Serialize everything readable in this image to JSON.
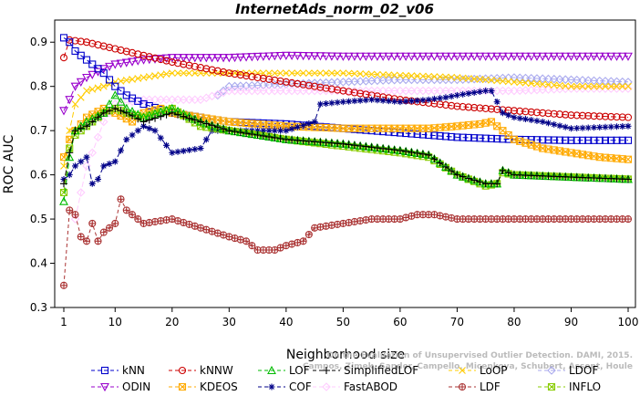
{
  "chart_data": {
    "type": "line",
    "title": "InternetAds_norm_02_v06",
    "xlabel": "Neighborhood size",
    "ylabel": "ROC AUC",
    "xlim": [
      0,
      100
    ],
    "ylim": [
      0.3,
      0.95
    ],
    "x_ticks": [
      1,
      10,
      20,
      30,
      40,
      50,
      60,
      70,
      80,
      90,
      100
    ],
    "y_ticks": [
      0.3,
      0.4,
      0.5,
      0.6,
      0.7,
      0.8,
      0.9
    ],
    "legend_position": "bottom",
    "watermark": "Campos, Zimek, Sander, Campello, Micenkova, Schubert, Assent, Houle",
    "watermark2": "On the Evaluation of Unsupervised Outlier Detection. DAMI, 2015.",
    "series": [
      {
        "name": "kNN",
        "color": "#0000cc",
        "marker": "square",
        "dash": "6,3",
        "points": [
          [
            1,
            0.91
          ],
          [
            2,
            0.9
          ],
          [
            3,
            0.88
          ],
          [
            5,
            0.86
          ],
          [
            8,
            0.83
          ],
          [
            10,
            0.8
          ],
          [
            12,
            0.78
          ],
          [
            15,
            0.76
          ],
          [
            20,
            0.74
          ],
          [
            30,
            0.72
          ],
          [
            40,
            0.715
          ],
          [
            50,
            0.705
          ],
          [
            60,
            0.695
          ],
          [
            70,
            0.685
          ],
          [
            80,
            0.68
          ],
          [
            90,
            0.678
          ],
          [
            100,
            0.678
          ]
        ]
      },
      {
        "name": "kNNW",
        "color": "#cc0000",
        "marker": "circle",
        "dash": "6,3",
        "points": [
          [
            1,
            0.865
          ],
          [
            2,
            0.905
          ],
          [
            5,
            0.9
          ],
          [
            10,
            0.885
          ],
          [
            15,
            0.87
          ],
          [
            20,
            0.855
          ],
          [
            30,
            0.83
          ],
          [
            40,
            0.81
          ],
          [
            50,
            0.79
          ],
          [
            60,
            0.77
          ],
          [
            70,
            0.755
          ],
          [
            80,
            0.745
          ],
          [
            90,
            0.735
          ],
          [
            100,
            0.73
          ]
        ]
      },
      {
        "name": "LOF",
        "color": "#00bb00",
        "marker": "triangle",
        "dash": "6,3",
        "points": [
          [
            1,
            0.54
          ],
          [
            2,
            0.64
          ],
          [
            3,
            0.7
          ],
          [
            5,
            0.72
          ],
          [
            8,
            0.74
          ],
          [
            10,
            0.78
          ],
          [
            12,
            0.75
          ],
          [
            15,
            0.73
          ],
          [
            20,
            0.75
          ],
          [
            25,
            0.72
          ],
          [
            30,
            0.7
          ],
          [
            40,
            0.68
          ],
          [
            50,
            0.67
          ],
          [
            60,
            0.655
          ],
          [
            65,
            0.645
          ],
          [
            70,
            0.6
          ],
          [
            75,
            0.58
          ],
          [
            77,
            0.58
          ],
          [
            78,
            0.61
          ],
          [
            80,
            0.6
          ],
          [
            90,
            0.595
          ],
          [
            100,
            0.59
          ]
        ]
      },
      {
        "name": "SimplifiedLOF",
        "color": "#000000",
        "marker": "plus",
        "dash": "6,3",
        "points": [
          [
            1,
            0.58
          ],
          [
            2,
            0.65
          ],
          [
            3,
            0.7
          ],
          [
            5,
            0.71
          ],
          [
            8,
            0.74
          ],
          [
            10,
            0.75
          ],
          [
            12,
            0.74
          ],
          [
            15,
            0.72
          ],
          [
            20,
            0.74
          ],
          [
            25,
            0.72
          ],
          [
            30,
            0.7
          ],
          [
            40,
            0.68
          ],
          [
            50,
            0.67
          ],
          [
            60,
            0.655
          ],
          [
            65,
            0.645
          ],
          [
            70,
            0.6
          ],
          [
            75,
            0.58
          ],
          [
            77,
            0.58
          ],
          [
            78,
            0.61
          ],
          [
            80,
            0.6
          ],
          [
            90,
            0.595
          ],
          [
            100,
            0.59
          ]
        ]
      },
      {
        "name": "LoOP",
        "color": "#ffcc00",
        "marker": "x",
        "dash": "6,3",
        "points": [
          [
            1,
            0.62
          ],
          [
            2,
            0.7
          ],
          [
            3,
            0.76
          ],
          [
            5,
            0.79
          ],
          [
            8,
            0.8
          ],
          [
            10,
            0.81
          ],
          [
            15,
            0.82
          ],
          [
            20,
            0.83
          ],
          [
            30,
            0.83
          ],
          [
            40,
            0.83
          ],
          [
            50,
            0.83
          ],
          [
            60,
            0.825
          ],
          [
            70,
            0.82
          ],
          [
            80,
            0.81
          ],
          [
            90,
            0.8
          ],
          [
            100,
            0.8
          ]
        ]
      },
      {
        "name": "LDOF",
        "color": "#aaaaee",
        "marker": "diamond",
        "dash": "6,3",
        "points": [
          [
            28,
            0.78
          ],
          [
            30,
            0.8
          ],
          [
            40,
            0.805
          ],
          [
            50,
            0.81
          ],
          [
            60,
            0.815
          ],
          [
            70,
            0.815
          ],
          [
            80,
            0.82
          ],
          [
            90,
            0.815
          ],
          [
            100,
            0.81
          ]
        ]
      },
      {
        "name": "ODIN",
        "color": "#9900cc",
        "marker": "triangle-down",
        "dash": "6,3",
        "points": [
          [
            1,
            0.745
          ],
          [
            2,
            0.77
          ],
          [
            3,
            0.8
          ],
          [
            5,
            0.82
          ],
          [
            8,
            0.84
          ],
          [
            10,
            0.85
          ],
          [
            15,
            0.86
          ],
          [
            20,
            0.865
          ],
          [
            30,
            0.865
          ],
          [
            40,
            0.87
          ],
          [
            50,
            0.868
          ],
          [
            60,
            0.868
          ],
          [
            70,
            0.868
          ],
          [
            80,
            0.868
          ],
          [
            90,
            0.868
          ],
          [
            100,
            0.868
          ]
        ]
      },
      {
        "name": "KDEOS",
        "color": "#ffaa00",
        "marker": "square-x",
        "dash": "6,3",
        "points": [
          [
            1,
            0.64
          ],
          [
            2,
            0.68
          ],
          [
            3,
            0.7
          ],
          [
            5,
            0.73
          ],
          [
            8,
            0.75
          ],
          [
            10,
            0.74
          ],
          [
            13,
            0.72
          ],
          [
            15,
            0.74
          ],
          [
            18,
            0.75
          ],
          [
            20,
            0.74
          ],
          [
            30,
            0.72
          ],
          [
            40,
            0.71
          ],
          [
            50,
            0.705
          ],
          [
            60,
            0.705
          ],
          [
            65,
            0.705
          ],
          [
            70,
            0.71
          ],
          [
            74,
            0.715
          ],
          [
            76,
            0.72
          ],
          [
            78,
            0.7
          ],
          [
            80,
            0.68
          ],
          [
            85,
            0.66
          ],
          [
            90,
            0.65
          ],
          [
            95,
            0.64
          ],
          [
            100,
            0.635
          ]
        ]
      },
      {
        "name": "COF",
        "color": "#000088",
        "marker": "star",
        "dash": "6,3",
        "points": [
          [
            1,
            0.59
          ],
          [
            2,
            0.6
          ],
          [
            3,
            0.62
          ],
          [
            5,
            0.64
          ],
          [
            6,
            0.58
          ],
          [
            7,
            0.59
          ],
          [
            8,
            0.62
          ],
          [
            10,
            0.63
          ],
          [
            12,
            0.68
          ],
          [
            15,
            0.71
          ],
          [
            17,
            0.7
          ],
          [
            20,
            0.65
          ],
          [
            25,
            0.66
          ],
          [
            27,
            0.7
          ],
          [
            30,
            0.7
          ],
          [
            40,
            0.7
          ],
          [
            45,
            0.72
          ],
          [
            46,
            0.76
          ],
          [
            50,
            0.765
          ],
          [
            55,
            0.77
          ],
          [
            60,
            0.765
          ],
          [
            65,
            0.77
          ],
          [
            68,
            0.775
          ],
          [
            70,
            0.78
          ],
          [
            75,
            0.79
          ],
          [
            76,
            0.79
          ],
          [
            78,
            0.74
          ],
          [
            80,
            0.73
          ],
          [
            85,
            0.72
          ],
          [
            90,
            0.705
          ],
          [
            100,
            0.71
          ]
        ]
      },
      {
        "name": "FastABOD",
        "color": "#ffccff",
        "marker": "diamond",
        "dash": "6,3",
        "points": [
          [
            3,
            0.5
          ],
          [
            4,
            0.56
          ],
          [
            5,
            0.62
          ],
          [
            6,
            0.65
          ],
          [
            8,
            0.72
          ],
          [
            10,
            0.76
          ],
          [
            15,
            0.77
          ],
          [
            20,
            0.77
          ],
          [
            25,
            0.77
          ],
          [
            30,
            0.79
          ],
          [
            40,
            0.79
          ],
          [
            50,
            0.79
          ],
          [
            60,
            0.79
          ],
          [
            70,
            0.79
          ],
          [
            80,
            0.79
          ],
          [
            90,
            0.795
          ],
          [
            100,
            0.795
          ]
        ]
      },
      {
        "name": "LDF",
        "color": "#aa3333",
        "marker": "circle-plus",
        "dash": "4,3",
        "points": [
          [
            1,
            0.35
          ],
          [
            2,
            0.52
          ],
          [
            3,
            0.51
          ],
          [
            4,
            0.46
          ],
          [
            5,
            0.45
          ],
          [
            6,
            0.49
          ],
          [
            7,
            0.45
          ],
          [
            8,
            0.47
          ],
          [
            9,
            0.48
          ],
          [
            10,
            0.49
          ],
          [
            11,
            0.545
          ],
          [
            12,
            0.52
          ],
          [
            13,
            0.51
          ],
          [
            15,
            0.49
          ],
          [
            20,
            0.5
          ],
          [
            25,
            0.48
          ],
          [
            30,
            0.46
          ],
          [
            33,
            0.45
          ],
          [
            35,
            0.43
          ],
          [
            38,
            0.43
          ],
          [
            40,
            0.44
          ],
          [
            43,
            0.45
          ],
          [
            45,
            0.48
          ],
          [
            50,
            0.49
          ],
          [
            55,
            0.5
          ],
          [
            60,
            0.5
          ],
          [
            63,
            0.51
          ],
          [
            66,
            0.51
          ],
          [
            70,
            0.5
          ],
          [
            80,
            0.5
          ],
          [
            90,
            0.5
          ],
          [
            100,
            0.5
          ]
        ]
      },
      {
        "name": "INFLO",
        "color": "#88cc00",
        "marker": "square-x",
        "dash": "6,3",
        "points": [
          [
            1,
            0.56
          ],
          [
            2,
            0.66
          ],
          [
            3,
            0.69
          ],
          [
            5,
            0.71
          ],
          [
            8,
            0.74
          ],
          [
            10,
            0.75
          ],
          [
            12,
            0.74
          ],
          [
            15,
            0.73
          ],
          [
            20,
            0.75
          ],
          [
            25,
            0.71
          ],
          [
            30,
            0.7
          ],
          [
            40,
            0.68
          ],
          [
            50,
            0.665
          ],
          [
            60,
            0.65
          ],
          [
            65,
            0.64
          ],
          [
            70,
            0.6
          ],
          [
            75,
            0.575
          ],
          [
            77,
            0.58
          ],
          [
            78,
            0.605
          ],
          [
            80,
            0.6
          ],
          [
            90,
            0.595
          ],
          [
            100,
            0.59
          ]
        ]
      }
    ],
    "legend_rows": [
      [
        "kNN",
        "kNNW",
        "LOF",
        "SimplifiedLOF",
        "LoOP",
        "LDOF"
      ],
      [
        "ODIN",
        "KDEOS",
        "COF",
        "FastABOD",
        "LDF",
        "INFLO"
      ]
    ]
  }
}
